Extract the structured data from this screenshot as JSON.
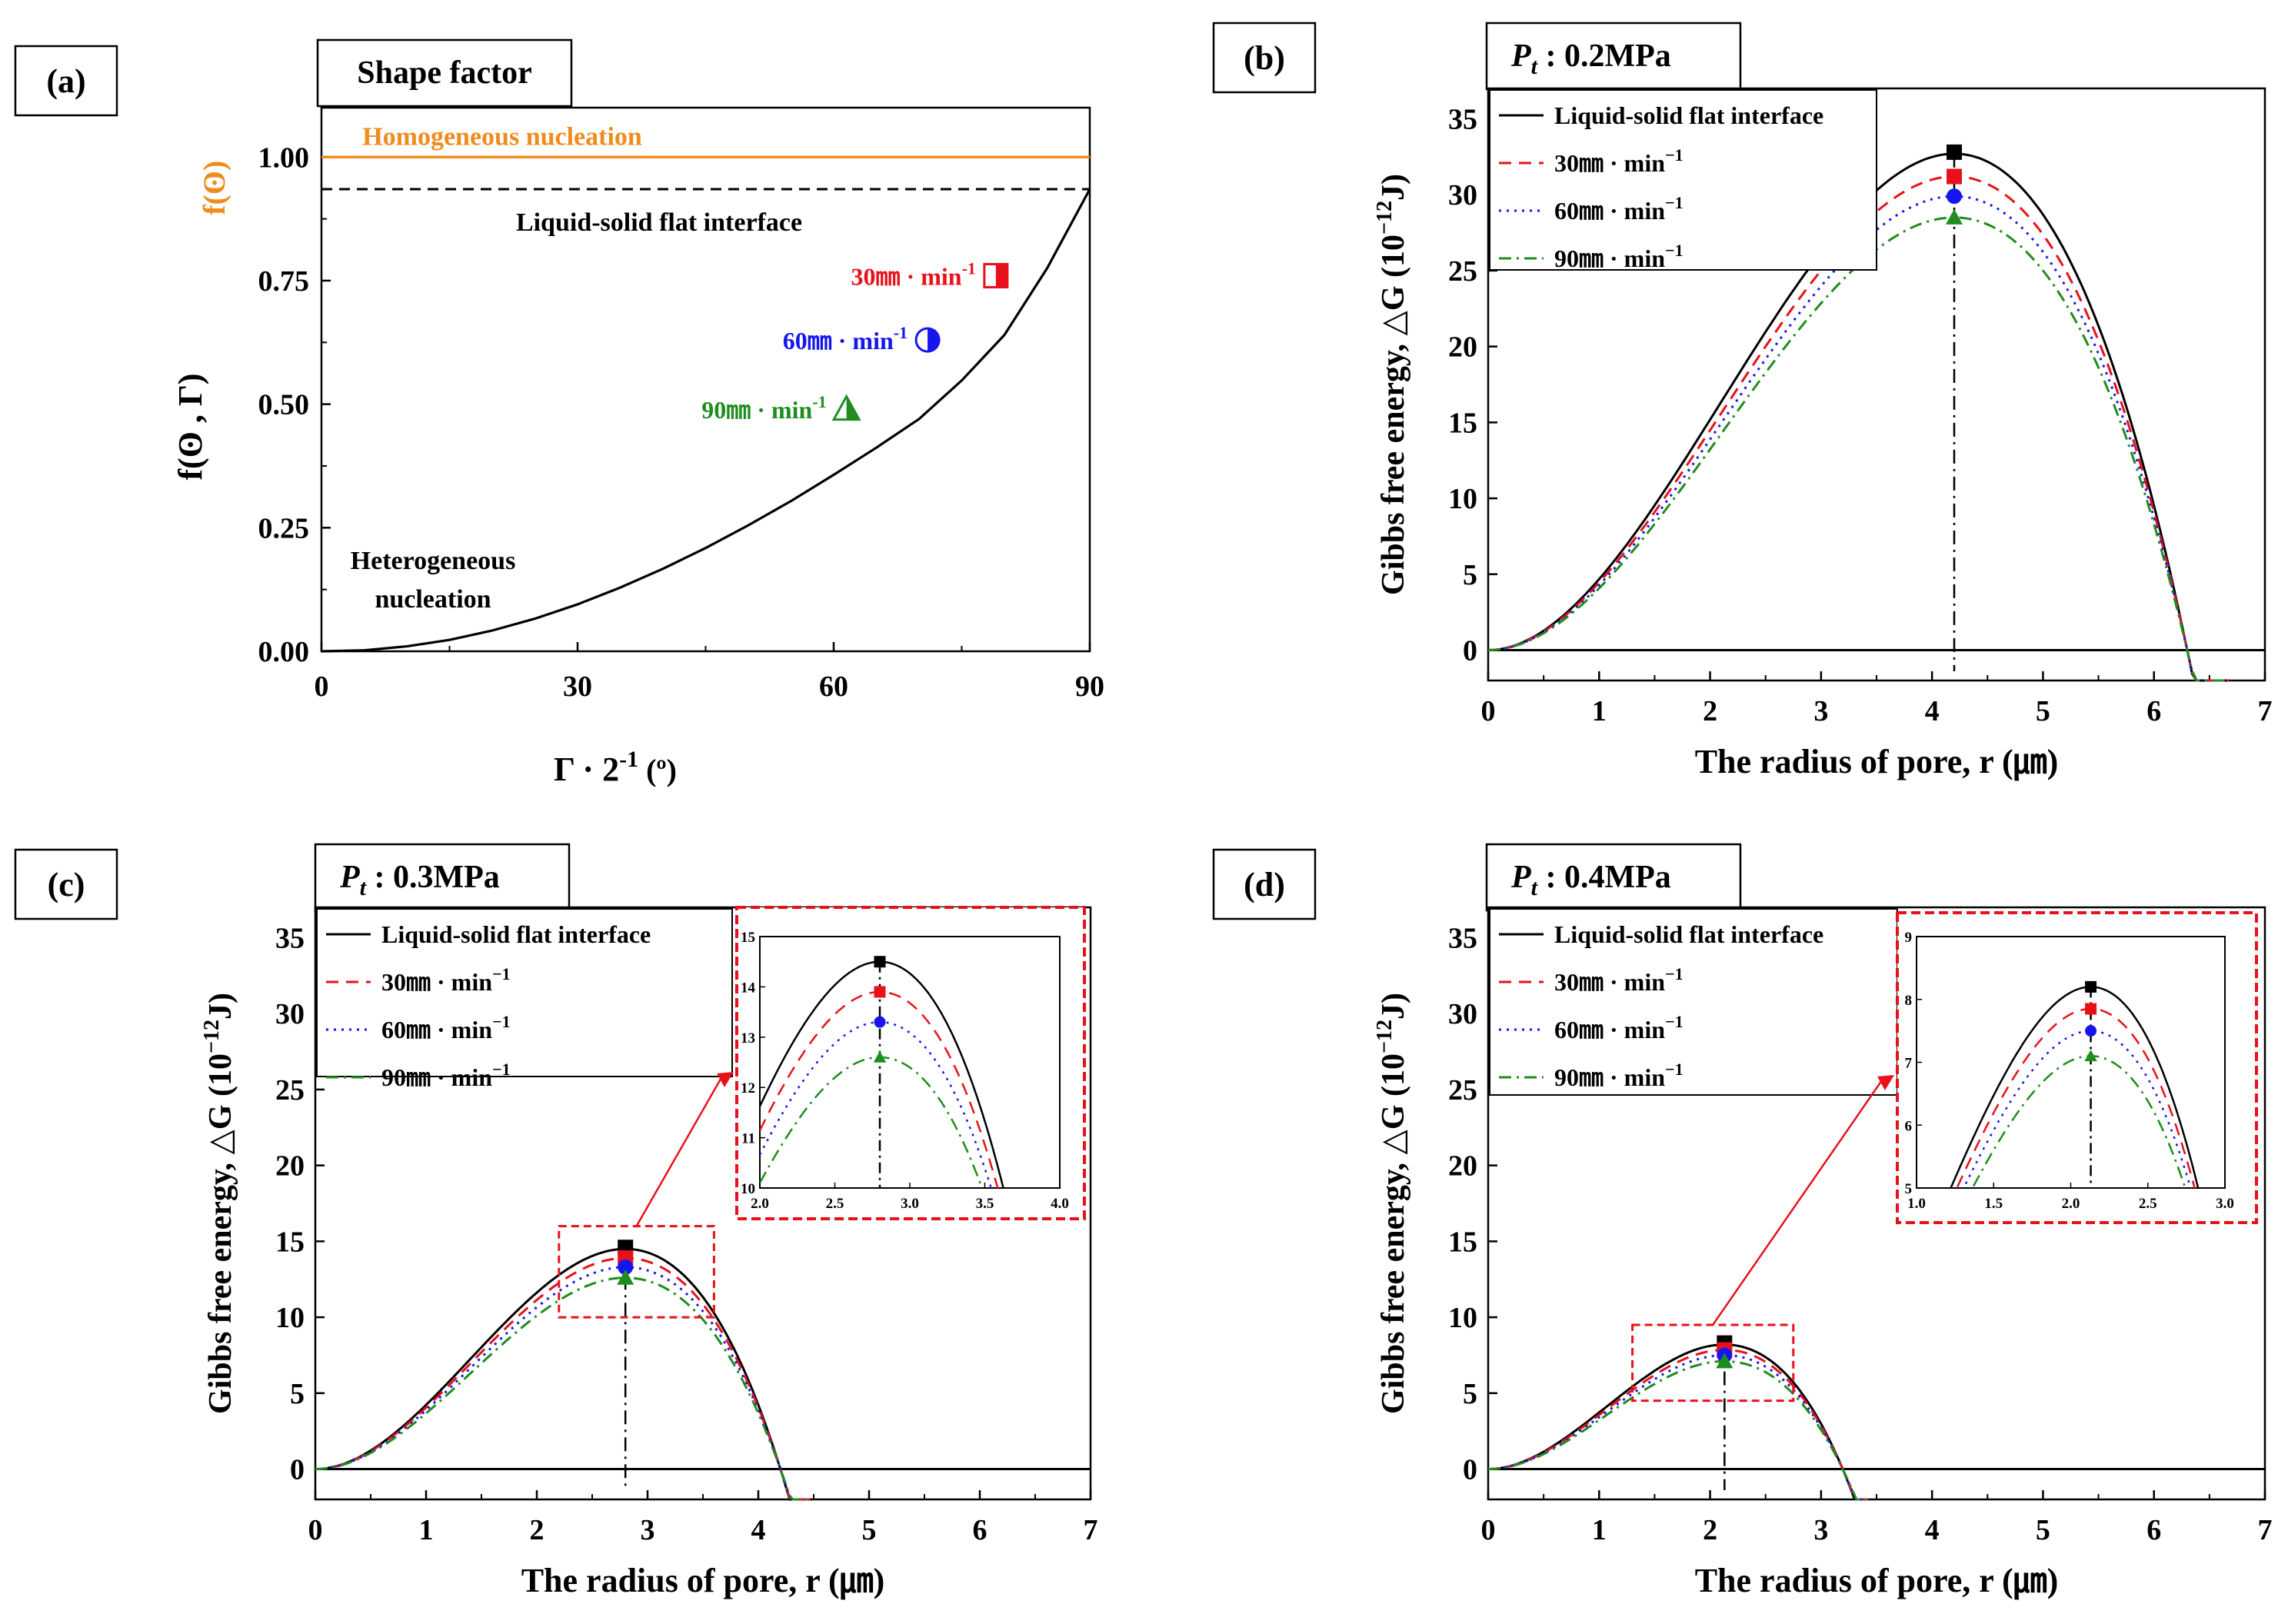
{
  "chart_data": [
    {
      "id": "a",
      "type": "line",
      "panel_label": "(a)",
      "title": "Shape factor",
      "ylabel": "f(ʘ , Γ)",
      "xlabel": "Γ · 2",
      "xlabel_sup": "-1",
      "xlabel_unit": " (º)",
      "xlim": [
        0,
        90
      ],
      "ylim": [
        0,
        1.1
      ],
      "xticks": [
        0,
        30,
        60,
        90
      ],
      "yticks": [
        0.0,
        0.25,
        0.5,
        0.75,
        1.0
      ],
      "ytick_labels": [
        "0.00",
        "0.25",
        "0.50",
        "0.75",
        "1.00"
      ],
      "extra_ytick": {
        "label": "f(ʘ)",
        "value": 1.0,
        "color": "#f08c1e"
      },
      "homogeneous": {
        "label": "Homogeneous nucleation",
        "value": 1.0,
        "color": "#f08c1e"
      },
      "flat_interface": {
        "label": "Liquid-solid flat interface",
        "value": 0.935
      },
      "curve_label": "Heterogeneous nucleation",
      "curve_label_lines": [
        "Heterogeneous",
        "nucleation"
      ],
      "curve_x": [
        0,
        5,
        10,
        15,
        20,
        25,
        30,
        35,
        40,
        45,
        50,
        55,
        60,
        65,
        70,
        75,
        80,
        85,
        90
      ],
      "curve_y": [
        0.0,
        0.002,
        0.01,
        0.023,
        0.042,
        0.066,
        0.095,
        0.129,
        0.167,
        0.209,
        0.255,
        0.304,
        0.357,
        0.412,
        0.47,
        0.548,
        0.64,
        0.775,
        0.935
      ],
      "markers": [
        {
          "label": "30㎜ · min",
          "sup": "-1",
          "x": 79,
          "y": 0.76,
          "shape": "square",
          "color": "#e8111b"
        },
        {
          "label": "60㎜ · min",
          "sup": "-1",
          "x": 71,
          "y": 0.63,
          "shape": "circle",
          "color": "#1515f0"
        },
        {
          "label": "90㎜ · min",
          "sup": "-1",
          "x": 61.5,
          "y": 0.49,
          "shape": "triangle",
          "color": "#1f8c1f"
        }
      ]
    },
    {
      "id": "b",
      "type": "line",
      "panel_label": "(b)",
      "title_main": "P",
      "title_sub": "t",
      "title_rest": " : 0.2MPa",
      "xlabel": "The radius of pore, r (㎛)",
      "ylabel": "Gibbs free energy, △G (10",
      "ylabel_sup": "−12",
      "ylabel_end": "J)",
      "xlim": [
        0,
        7
      ],
      "ylim": [
        -2,
        37
      ],
      "xticks": [
        0,
        1,
        2,
        3,
        4,
        5,
        6,
        7
      ],
      "yticks": [
        0,
        5,
        10,
        15,
        20,
        25,
        30,
        35
      ],
      "r_star": 4.2,
      "series": [
        {
          "name": "Liquid-solid flat interface",
          "peak": 32.7,
          "color": "#000000",
          "dash": "",
          "marker": "square"
        },
        {
          "name": "30㎜ · min",
          "sup": "−1",
          "peak": 31.2,
          "color": "#e8111b",
          "dash": "16,10",
          "marker": "square"
        },
        {
          "name": "60㎜ · min",
          "sup": "−1",
          "peak": 29.9,
          "color": "#1515f0",
          "dash": "3,7",
          "marker": "circle"
        },
        {
          "name": "90㎜ · min",
          "sup": "−1",
          "peak": 28.5,
          "color": "#1f8c1f",
          "dash": "16,7,3,7",
          "marker": "triangle"
        }
      ]
    },
    {
      "id": "c",
      "type": "line",
      "panel_label": "(c)",
      "title_main": "P",
      "title_sub": "t",
      "title_rest": " : 0.3MPa",
      "xlabel": "The radius of pore, r (㎛)",
      "ylabel": "Gibbs free energy, △G (10",
      "ylabel_sup": "−12",
      "ylabel_end": "J)",
      "xlim": [
        0,
        7
      ],
      "ylim": [
        -2,
        37
      ],
      "xticks": [
        0,
        1,
        2,
        3,
        4,
        5,
        6,
        7
      ],
      "yticks": [
        0,
        5,
        10,
        15,
        20,
        25,
        30,
        35
      ],
      "r_star": 2.8,
      "series": [
        {
          "name": "Liquid-solid flat interface",
          "peak": 14.5,
          "color": "#000000",
          "dash": "",
          "marker": "square"
        },
        {
          "name": "30㎜ · min",
          "sup": "−1",
          "peak": 13.9,
          "color": "#e8111b",
          "dash": "16,10",
          "marker": "square"
        },
        {
          "name": "60㎜ · min",
          "sup": "−1",
          "peak": 13.3,
          "color": "#1515f0",
          "dash": "3,7",
          "marker": "circle"
        },
        {
          "name": "90㎜ · min",
          "sup": "−1",
          "peak": 12.6,
          "color": "#1f8c1f",
          "dash": "16,7,3,7",
          "marker": "triangle"
        }
      ],
      "zoom_box": {
        "x": [
          2.2,
          3.6
        ],
        "y": [
          10,
          16
        ]
      },
      "inset": {
        "xlim": [
          2.0,
          4.0
        ],
        "ylim": [
          10,
          15
        ],
        "xticks": [
          2.0,
          2.5,
          3.0,
          3.5,
          4.0
        ],
        "xtick_labels": [
          "2.0",
          "2.5",
          "3.0",
          "3.5",
          "4.0"
        ],
        "yticks": [
          10,
          11,
          12,
          13,
          14,
          15
        ]
      }
    },
    {
      "id": "d",
      "type": "line",
      "panel_label": "(d)",
      "title_main": "P",
      "title_sub": "t",
      "title_rest": " : 0.4MPa",
      "xlabel": "The radius of pore, r (㎛)",
      "ylabel": "Gibbs free energy, △G (10",
      "ylabel_sup": "−12",
      "ylabel_end": "J)",
      "xlim": [
        0,
        7
      ],
      "ylim": [
        -2,
        37
      ],
      "xticks": [
        0,
        1,
        2,
        3,
        4,
        5,
        6,
        7
      ],
      "yticks": [
        0,
        5,
        10,
        15,
        20,
        25,
        30,
        35
      ],
      "r_star": 2.13,
      "series": [
        {
          "name": "Liquid-solid flat interface",
          "peak": 8.2,
          "color": "#000000",
          "dash": "",
          "marker": "square"
        },
        {
          "name": "30㎜ · min",
          "sup": "−1",
          "peak": 7.85,
          "color": "#e8111b",
          "dash": "16,10",
          "marker": "square"
        },
        {
          "name": "60㎜ · min",
          "sup": "−1",
          "peak": 7.5,
          "color": "#1515f0",
          "dash": "3,7",
          "marker": "circle"
        },
        {
          "name": "90㎜ · min",
          "sup": "−1",
          "peak": 7.1,
          "color": "#1f8c1f",
          "dash": "16,7,3,7",
          "marker": "triangle"
        }
      ],
      "zoom_box": {
        "x": [
          1.3,
          2.75
        ],
        "y": [
          4.5,
          9.5
        ]
      },
      "inset": {
        "xlim": [
          1.0,
          3.0
        ],
        "ylim": [
          5,
          9
        ],
        "xticks": [
          1.0,
          1.5,
          2.0,
          2.5,
          3.0
        ],
        "xtick_labels": [
          "1.0",
          "1.5",
          "2.0",
          "2.5",
          "3.0"
        ],
        "yticks": [
          5,
          6,
          7,
          8,
          9
        ]
      }
    }
  ]
}
